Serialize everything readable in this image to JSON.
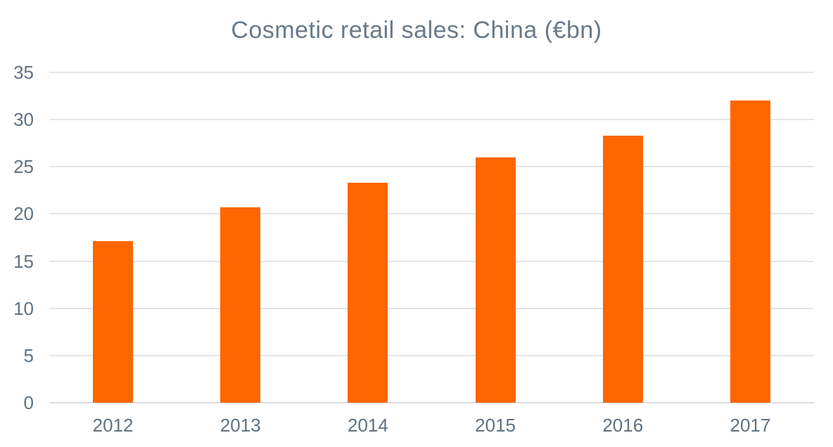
{
  "chart_data": {
    "type": "bar",
    "title": "Cosmetic retail sales: China (€bn)",
    "categories": [
      "2012",
      "2013",
      "2014",
      "2015",
      "2016",
      "2017"
    ],
    "values": [
      17.1,
      20.7,
      23.3,
      26.0,
      28.3,
      32.0
    ],
    "xlabel": "",
    "ylabel": "",
    "ylim": [
      0,
      35
    ],
    "yticks": [
      0,
      5,
      10,
      15,
      20,
      25,
      30,
      35
    ],
    "grid": true,
    "legend": false,
    "colors": {
      "bar": "#ff6600",
      "gridline": "#e2e6ea",
      "axis_line": "#d7dde3",
      "tick_text": "#5f7282",
      "title_text": "#68798a",
      "background": "#ffffff"
    }
  }
}
